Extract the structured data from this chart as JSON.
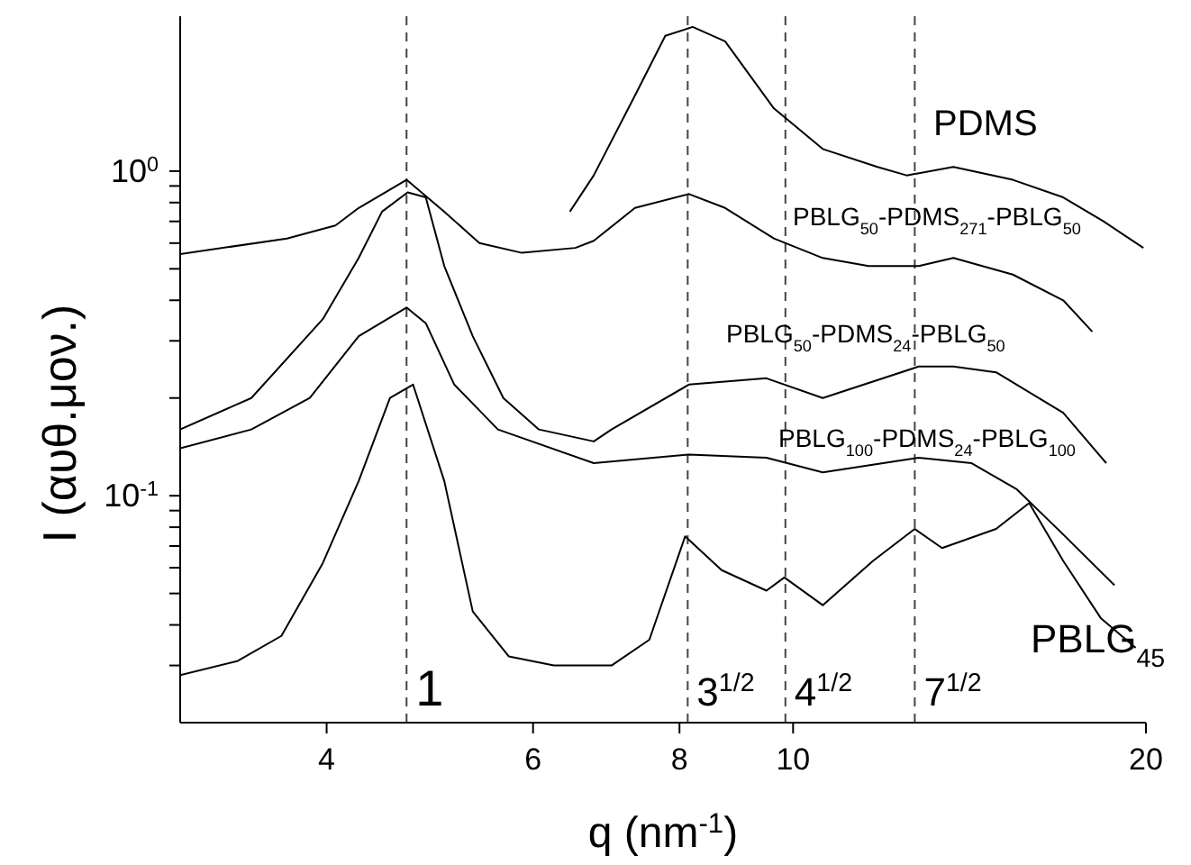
{
  "chart_data": {
    "type": "line",
    "xlabel": "q (nm$^{-1}$)",
    "ylabel": "I (αυθ.μον.)",
    "log": "xy",
    "xlim": [
      3,
      20
    ],
    "xticks": [
      4,
      6,
      8,
      10,
      20
    ],
    "ylim": [
      0.02,
      3
    ],
    "yticks": [
      {
        "value": 0.03,
        "label": null
      },
      {
        "value": 0.04,
        "label": null
      },
      {
        "value": 0.05,
        "label": null
      },
      {
        "value": 0.06,
        "label": null
      },
      {
        "value": 0.07,
        "label": null
      },
      {
        "value": 0.08,
        "label": null
      },
      {
        "value": 0.09,
        "label": null
      },
      {
        "value": 0.1,
        "label": "10$^{-1}$"
      },
      {
        "value": 0.2,
        "label": null
      },
      {
        "value": 0.3,
        "label": null
      },
      {
        "value": 0.4,
        "label": null
      },
      {
        "value": 0.5,
        "label": null
      },
      {
        "value": 0.6,
        "label": null
      },
      {
        "value": 0.7,
        "label": null
      },
      {
        "value": 0.8,
        "label": null
      },
      {
        "value": 0.9,
        "label": null
      },
      {
        "value": 1,
        "label": "10$^{0}$"
      }
    ],
    "marker": "none",
    "series": [
      {
        "name": "PDMS",
        "color": "#000000",
        "x": [
          6.45,
          6.76,
          7.33,
          7.78,
          8.21,
          8.75,
          9.63,
          10.6,
          11.8,
          12.5,
          13.7,
          15.4,
          17.0,
          18.4,
          19.9
        ],
        "values": [
          0.75,
          0.97,
          1.71,
          2.61,
          2.78,
          2.51,
          1.56,
          1.17,
          1.03,
          0.97,
          1.03,
          0.94,
          0.83,
          0.7,
          0.58
        ]
      },
      {
        "name": "PBLG$_{50}$-PDMS$_{271}$-PBLG$_{50}$",
        "color": "#000000",
        "x": [
          3.0,
          3.7,
          4.07,
          4.26,
          4.68,
          5.04,
          5.4,
          5.87,
          6.52,
          6.76,
          7.33,
          8.15,
          8.75,
          9.63,
          10.6,
          11.6,
          12.8,
          13.7,
          15.4,
          17.0,
          18.0
        ],
        "values": [
          0.555,
          0.62,
          0.68,
          0.77,
          0.94,
          0.75,
          0.6,
          0.56,
          0.58,
          0.61,
          0.77,
          0.85,
          0.77,
          0.62,
          0.54,
          0.51,
          0.51,
          0.54,
          0.48,
          0.4,
          0.32
        ]
      },
      {
        "name": "PBLG$_{50}$-PDMS$_{24}$-PBLG$_{50}$",
        "color": "#000000",
        "x": [
          3.0,
          3.45,
          3.97,
          4.26,
          4.46,
          4.69,
          4.86,
          5.04,
          5.33,
          5.66,
          6.07,
          6.76,
          7.0,
          8.15,
          9.49,
          10.6,
          12.8,
          13.7,
          14.9,
          17.0,
          18.5
        ],
        "values": [
          0.16,
          0.2,
          0.35,
          0.54,
          0.75,
          0.86,
          0.83,
          0.51,
          0.31,
          0.2,
          0.16,
          0.147,
          0.16,
          0.22,
          0.23,
          0.2,
          0.25,
          0.25,
          0.24,
          0.18,
          0.126
        ]
      },
      {
        "name": "PBLG$_{100}$-PDMS$_{24}$-PBLG$_{100}$",
        "color": "#000000",
        "x": [
          3.0,
          3.45,
          3.87,
          4.26,
          4.68,
          4.86,
          5.14,
          5.6,
          6.76,
          8.15,
          9.49,
          10.6,
          12.8,
          14.2,
          15.5,
          17.0,
          18.8
        ],
        "values": [
          0.14,
          0.16,
          0.2,
          0.31,
          0.38,
          0.34,
          0.22,
          0.16,
          0.126,
          0.134,
          0.131,
          0.118,
          0.131,
          0.126,
          0.105,
          0.076,
          0.053
        ]
      },
      {
        "name": "PBLG$_{45}$",
        "color": "#000000",
        "x": [
          3.0,
          3.36,
          3.66,
          3.97,
          4.26,
          4.53,
          4.74,
          5.04,
          5.33,
          5.72,
          6.25,
          7.0,
          7.54,
          8.09,
          8.69,
          9.49,
          9.83,
          10.6,
          11.7,
          12.7,
          13.4,
          14.9,
          15.9,
          17.0,
          18.3,
          19.6
        ],
        "values": [
          0.028,
          0.031,
          0.037,
          0.062,
          0.111,
          0.2,
          0.22,
          0.111,
          0.044,
          0.032,
          0.03,
          0.03,
          0.036,
          0.075,
          0.059,
          0.051,
          0.056,
          0.046,
          0.063,
          0.079,
          0.069,
          0.079,
          0.095,
          0.063,
          0.042,
          0.034
        ]
      }
    ],
    "ref_lines": [
      {
        "axis": "x",
        "value": 4.68,
        "line_style": "dashed"
      },
      {
        "axis": "x",
        "value": 8.13,
        "line_style": "dashed"
      },
      {
        "axis": "x",
        "value": 9.85,
        "line_style": "dashed"
      },
      {
        "axis": "x",
        "value": 12.7,
        "line_style": "dashed"
      }
    ],
    "annotations": [
      {
        "text": "1",
        "x": 4.68,
        "y": 0.025
      },
      {
        "text": "3$^{1/2}$",
        "x": 8.13,
        "y": 0.025
      },
      {
        "text": "4$^{1/2}$",
        "x": 9.85,
        "y": 0.025
      },
      {
        "text": "7$^{1/2}$",
        "x": 12.7,
        "y": 0.025
      }
    ]
  }
}
